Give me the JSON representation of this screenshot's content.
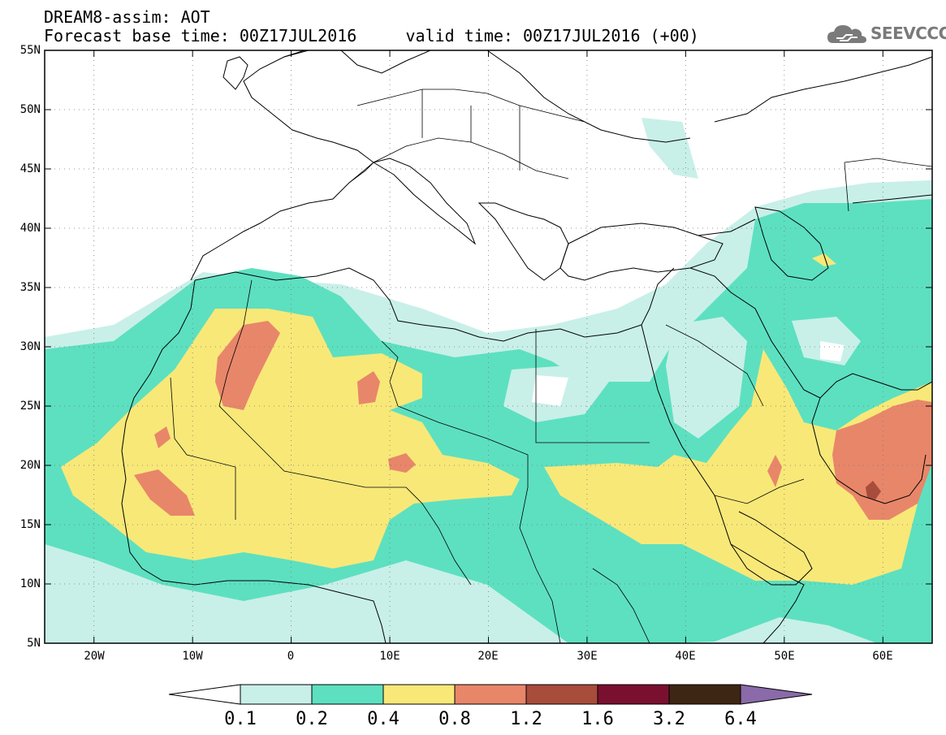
{
  "title": {
    "line1": "DREAM8-assim: AOT",
    "line2": "Forecast base time: 00Z17JUL2016     valid time: 00Z17JUL2016 (+00)"
  },
  "logo": {
    "text": "SEEVCCC",
    "icon": "cloud-icon",
    "color": "#7a7a7a"
  },
  "map": {
    "lon_range": [
      -25,
      65
    ],
    "lat_range": [
      5,
      55
    ],
    "grid": "dotted",
    "lat_labels": [
      "55N",
      "50N",
      "45N",
      "40N",
      "35N",
      "30N",
      "25N",
      "20N",
      "15N",
      "10N",
      "5N"
    ],
    "lon_labels": [
      "20W",
      "10W",
      "0",
      "10E",
      "20E",
      "30E",
      "40E",
      "50E",
      "60E"
    ]
  },
  "colorbar": {
    "labels": [
      "0.1",
      "0.2",
      "0.4",
      "0.8",
      "1.2",
      "1.6",
      "3.2",
      "6.4"
    ],
    "colors": [
      "#ffffff",
      "#c8f0e8",
      "#5de0c0",
      "#f8e878",
      "#e8866a",
      "#a84c3c",
      "#7a1030",
      "#3e2614",
      "#8a6aa8"
    ]
  }
}
